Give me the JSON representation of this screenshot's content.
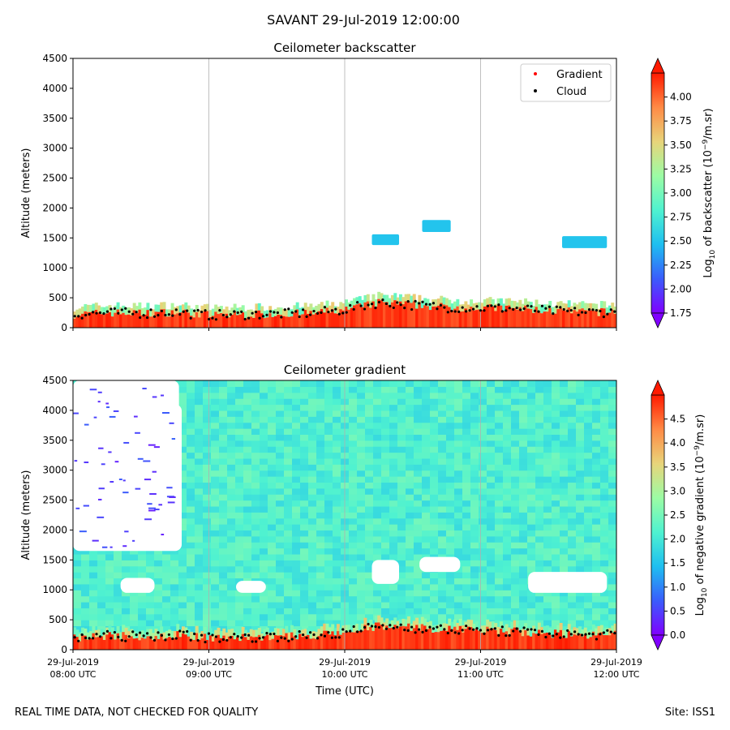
{
  "suptitle": "SAVANT 29-Jul-2019 12:00:00",
  "footer_left": "REAL TIME DATA, NOT CHECKED FOR QUALITY",
  "footer_right": "Site: ISS1",
  "xlabel": "Time (UTC)",
  "x_ticks": [
    {
      "l1": "29-Jul-2019",
      "l2": "08:00 UTC",
      "hour": 8
    },
    {
      "l1": "29-Jul-2019",
      "l2": "09:00 UTC",
      "hour": 9
    },
    {
      "l1": "29-Jul-2019",
      "l2": "10:00 UTC",
      "hour": 10
    },
    {
      "l1": "29-Jul-2019",
      "l2": "11:00 UTC",
      "hour": 11
    },
    {
      "l1": "29-Jul-2019",
      "l2": "12:00 UTC",
      "hour": 12
    }
  ],
  "colormap": [
    "#8000ff",
    "#3a5cfc",
    "#1ebff0",
    "#4ff2d0",
    "#9cfca4",
    "#e8d47a",
    "#ff8a45",
    "#ff1a00"
  ],
  "chart_data": [
    {
      "type": "heatmap",
      "title": "Ceilometer backscatter",
      "ylabel": "Altitude (meters)",
      "xlim": [
        8,
        12
      ],
      "ylim": [
        0,
        4500
      ],
      "y_ticks": [
        0,
        500,
        1000,
        1500,
        2000,
        2500,
        3000,
        3500,
        4000,
        4500
      ],
      "grid": "vertical",
      "legend": {
        "placement": "top-right",
        "entries": [
          {
            "label": "Gradient",
            "color": "#ff0000"
          },
          {
            "label": "Cloud",
            "color": "#000000"
          }
        ]
      },
      "colorbar": {
        "label": "Log10 of backscatter (10^-9/m.sr)",
        "label_parts": {
          "a": "Log",
          "b": "10",
          "c": " of backscatter (10",
          "d": "−9",
          "e": "/m.sr)"
        },
        "range": [
          1.75,
          4.25
        ],
        "ticks": [
          "1.75",
          "2.00",
          "2.25",
          "2.50",
          "2.75",
          "3.00",
          "3.25",
          "3.50",
          "3.75",
          "4.00"
        ],
        "extend": "both"
      },
      "cloud_layers": [
        {
          "x": [
            10.2,
            10.4
          ],
          "y": [
            1380,
            1560
          ]
        },
        {
          "x": [
            10.57,
            10.78
          ],
          "y": [
            1600,
            1800
          ]
        },
        {
          "x": [
            11.6,
            11.93
          ],
          "y": [
            1330,
            1530
          ]
        }
      ],
      "boundary_layer_height": [
        {
          "x": 8.0,
          "y": 220
        },
        {
          "x": 8.25,
          "y": 250
        },
        {
          "x": 8.5,
          "y": 240
        },
        {
          "x": 8.75,
          "y": 260
        },
        {
          "x": 9.0,
          "y": 210
        },
        {
          "x": 9.25,
          "y": 220
        },
        {
          "x": 9.5,
          "y": 230
        },
        {
          "x": 9.75,
          "y": 240
        },
        {
          "x": 10.0,
          "y": 300
        },
        {
          "x": 10.25,
          "y": 420
        },
        {
          "x": 10.5,
          "y": 380
        },
        {
          "x": 10.75,
          "y": 340
        },
        {
          "x": 11.0,
          "y": 330
        },
        {
          "x": 11.25,
          "y": 320
        },
        {
          "x": 11.5,
          "y": 280
        },
        {
          "x": 11.75,
          "y": 260
        }
      ]
    },
    {
      "type": "heatmap",
      "title": "Ceilometer gradient",
      "ylabel": "Altitude (meters)",
      "xlim": [
        8,
        12
      ],
      "ylim": [
        0,
        4500
      ],
      "y_ticks": [
        0,
        500,
        1000,
        1500,
        2000,
        2500,
        3000,
        3500,
        4000,
        4500
      ],
      "grid": "vertical",
      "colorbar": {
        "label": "Log10 of negative gradient (10^-9/m.sr)",
        "label_parts": {
          "a": "Log",
          "b": "10",
          "c": " of negative gradient (10",
          "d": "−9",
          "e": "/m.sr)"
        },
        "range": [
          0.0,
          5.0
        ],
        "ticks": [
          "0.0",
          "0.5",
          "1.0",
          "1.5",
          "2.0",
          "2.5",
          "3.0",
          "3.5",
          "4.0",
          "4.5"
        ],
        "extend": "both"
      },
      "boundary_layer_height": [
        {
          "x": 8.0,
          "y": 200
        },
        {
          "x": 8.25,
          "y": 230
        },
        {
          "x": 8.5,
          "y": 220
        },
        {
          "x": 8.75,
          "y": 250
        },
        {
          "x": 9.0,
          "y": 200
        },
        {
          "x": 9.25,
          "y": 210
        },
        {
          "x": 9.5,
          "y": 220
        },
        {
          "x": 9.75,
          "y": 230
        },
        {
          "x": 10.0,
          "y": 280
        },
        {
          "x": 10.25,
          "y": 400
        },
        {
          "x": 10.5,
          "y": 370
        },
        {
          "x": 10.75,
          "y": 330
        },
        {
          "x": 11.0,
          "y": 320
        },
        {
          "x": 11.25,
          "y": 300
        },
        {
          "x": 11.5,
          "y": 270
        },
        {
          "x": 11.75,
          "y": 250
        }
      ]
    }
  ]
}
